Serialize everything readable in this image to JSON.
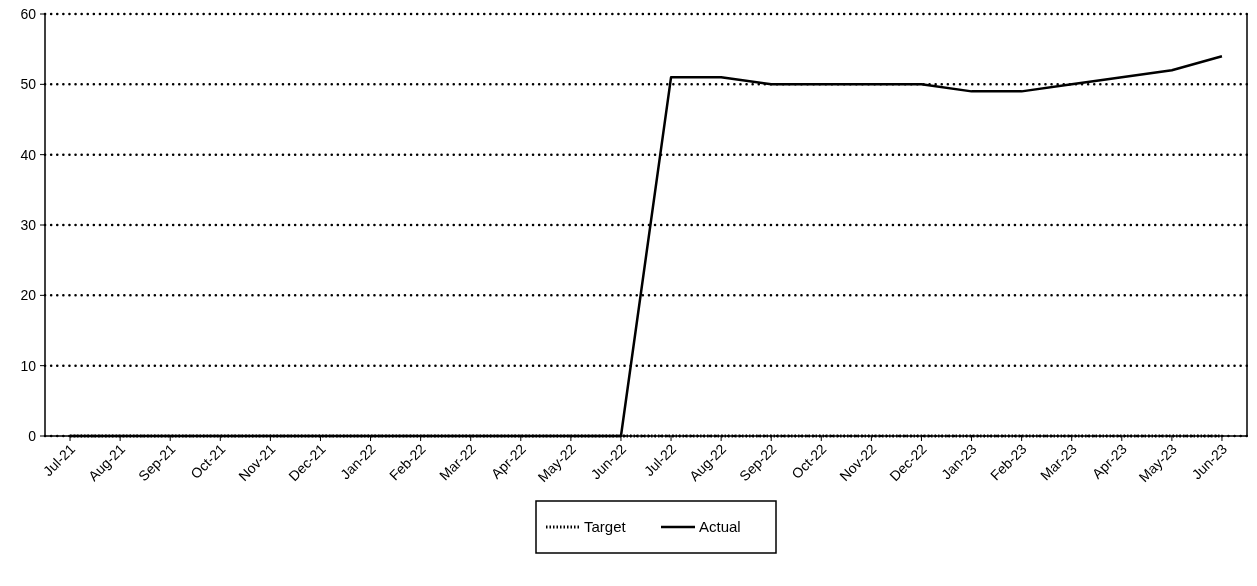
{
  "chart_data": {
    "type": "line",
    "categories": [
      "Jul-21",
      "Aug-21",
      "Sep-21",
      "Oct-21",
      "Nov-21",
      "Dec-21",
      "Jan-22",
      "Feb-22",
      "Mar-22",
      "Apr-22",
      "May-22",
      "Jun-22",
      "Jul-22",
      "Aug-22",
      "Sep-22",
      "Oct-22",
      "Nov-22",
      "Dec-22",
      "Jan-23",
      "Feb-23",
      "Mar-23",
      "Apr-23",
      "May-23",
      "Jun-23"
    ],
    "series": [
      {
        "name": "Target",
        "color": "#000000",
        "line_style": "dotted",
        "values": [
          0,
          0,
          0,
          0,
          0,
          0,
          0,
          0,
          0,
          0,
          0,
          0,
          0,
          0,
          0,
          0,
          0,
          0,
          0,
          0,
          0,
          0,
          0,
          0
        ]
      },
      {
        "name": "Actual",
        "color": "#000000",
        "line_style": "solid",
        "values": [
          0,
          0,
          0,
          0,
          0,
          0,
          0,
          0,
          0,
          0,
          0,
          0,
          51,
          51,
          50,
          50,
          50,
          50,
          49,
          49,
          50,
          51,
          52,
          54
        ]
      }
    ],
    "ylim": [
      0,
      60
    ],
    "yticks": [
      0,
      10,
      20,
      30,
      40,
      50,
      60
    ],
    "grid": "y",
    "legend": "bottom",
    "marker": "none"
  }
}
